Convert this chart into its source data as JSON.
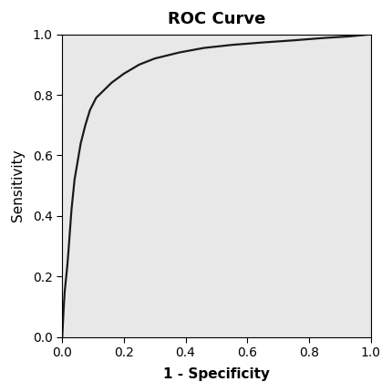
{
  "title": "ROC Curve",
  "xlabel": "1 - Specificity",
  "ylabel": "Sensitivity",
  "xlim": [
    0.0,
    1.0
  ],
  "ylim": [
    0.0,
    1.0
  ],
  "xticks": [
    0.0,
    0.2,
    0.4,
    0.6,
    0.8,
    1.0
  ],
  "yticks": [
    0.0,
    0.2,
    0.4,
    0.6,
    0.8,
    1.0
  ],
  "background_color": "#e8e8e8",
  "figure_color": "#ffffff",
  "line_color": "#1a1a1a",
  "line_width": 1.6,
  "title_fontsize": 13,
  "label_fontsize": 11,
  "tick_fontsize": 10,
  "roc_points_x": [
    0.0,
    0.002,
    0.005,
    0.008,
    0.012,
    0.016,
    0.02,
    0.025,
    0.03,
    0.04,
    0.05,
    0.06,
    0.075,
    0.09,
    0.11,
    0.13,
    0.16,
    0.2,
    0.25,
    0.3,
    0.38,
    0.46,
    0.55,
    0.65,
    0.75,
    0.85,
    0.93,
    1.0
  ],
  "roc_points_y": [
    0.0,
    0.04,
    0.1,
    0.15,
    0.19,
    0.23,
    0.28,
    0.35,
    0.42,
    0.52,
    0.58,
    0.64,
    0.7,
    0.75,
    0.79,
    0.81,
    0.84,
    0.87,
    0.9,
    0.92,
    0.94,
    0.955,
    0.965,
    0.973,
    0.98,
    0.988,
    0.993,
    1.0
  ]
}
